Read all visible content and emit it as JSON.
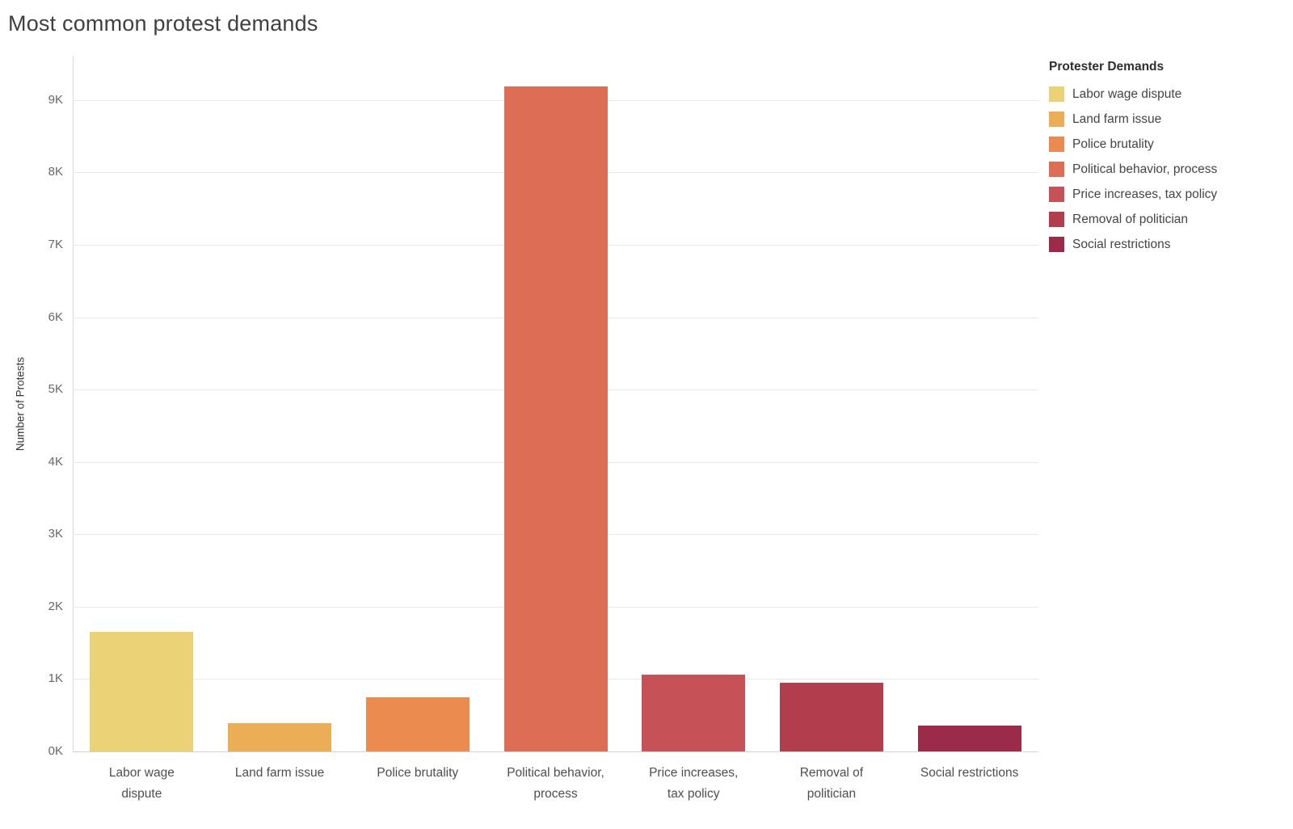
{
  "title": "Most common protest demands",
  "y_axis": {
    "label": "Number of Protests"
  },
  "legend": {
    "title": "Protester Demands",
    "items": [
      {
        "label": "Labor wage dispute",
        "color": "#ecd277"
      },
      {
        "label": "Land farm issue",
        "color": "#ebad55"
      },
      {
        "label": "Police brutality",
        "color": "#ec8b4f"
      },
      {
        "label": "Political behavior, process",
        "color": "#dd6d55"
      },
      {
        "label": "Price increases, tax policy",
        "color": "#c65257"
      },
      {
        "label": "Removal of politician",
        "color": "#b23e4d"
      },
      {
        "label": "Social restrictions",
        "color": "#9c2b4a"
      }
    ]
  },
  "chart_data": {
    "type": "bar",
    "title": "Most common protest demands",
    "xlabel": "",
    "ylabel": "Number of Protests",
    "categories": [
      "Labor wage dispute",
      "Land farm issue",
      "Police brutality",
      "Political behavior, process",
      "Price increases, tax policy",
      "Removal of politician",
      "Social restrictions"
    ],
    "values": [
      1650,
      390,
      750,
      9190,
      1060,
      950,
      360
    ],
    "colors": [
      "#ecd277",
      "#ebad55",
      "#ec8b4f",
      "#dd6d55",
      "#c65257",
      "#b23e4d",
      "#9c2b4a"
    ],
    "x_tick_labels": [
      "Labor wage\ndispute",
      "Land farm issue",
      "Police brutality",
      "Political behavior,\nprocess",
      "Price increases,\ntax policy",
      "Removal of\npolitician",
      "Social restrictions"
    ],
    "yticks": [
      {
        "value": 0,
        "label": "0K"
      },
      {
        "value": 1000,
        "label": "1K"
      },
      {
        "value": 2000,
        "label": "2K"
      },
      {
        "value": 3000,
        "label": "3K"
      },
      {
        "value": 4000,
        "label": "4K"
      },
      {
        "value": 5000,
        "label": "5K"
      },
      {
        "value": 6000,
        "label": "6K"
      },
      {
        "value": 7000,
        "label": "7K"
      },
      {
        "value": 8000,
        "label": "8K"
      },
      {
        "value": 9000,
        "label": "9K"
      }
    ],
    "ylim": [
      0,
      9600
    ],
    "grid": true,
    "legend_position": "right",
    "legend_title": "Protester Demands"
  }
}
